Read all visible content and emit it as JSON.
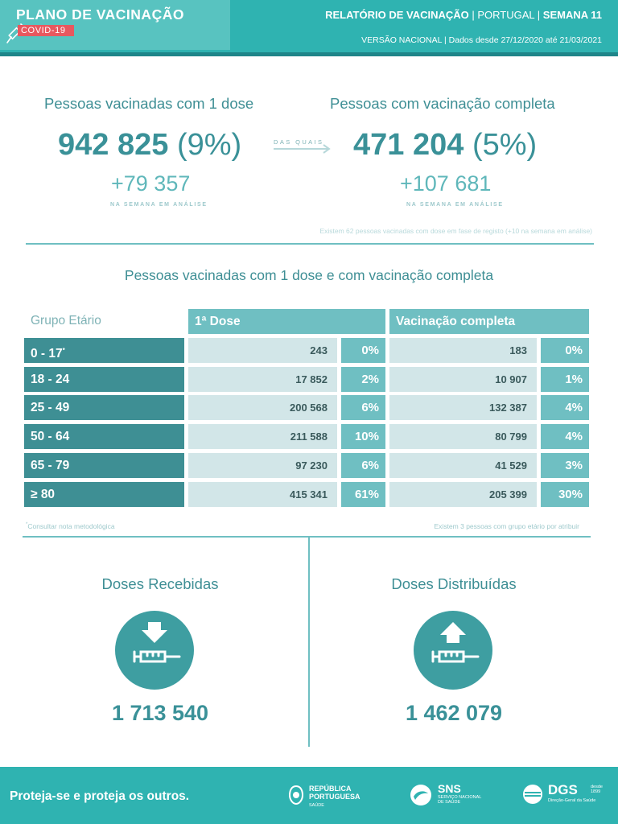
{
  "header": {
    "plan_title": "PLANO DE VACINAÇÃO",
    "plan_badge": "COVID-19",
    "report_title": "RELATÓRIO DE VACINAÇÃO",
    "country": "PORTUGAL",
    "week": "SEMANA 11",
    "version": "VERSÃO NACIONAL",
    "data_range": "Dados desde 27/12/2020 até 21/03/2021"
  },
  "kpis": {
    "one_dose": {
      "label": "Pessoas vacinadas com 1 dose",
      "value": "942 825",
      "percent": "(9%)",
      "delta": "+79 357",
      "delta_caption": "NA SEMANA EM ANÁLISE"
    },
    "connector": "DAS QUAIS",
    "complete": {
      "label": "Pessoas com vacinação completa",
      "value": "471 204",
      "percent": "(5%)",
      "delta": "+107 681",
      "delta_caption": "NA SEMANA EM ANÁLISE"
    },
    "registo_note": "Existem 62 pessoas vacinadas com dose em fase de registo (+10 na semana em análise)"
  },
  "table": {
    "title": "Pessoas vacinadas com 1 dose e com vacinação completa",
    "col_age": "Grupo Etário",
    "col_dose1": "1ª Dose",
    "col_complete": "Vacinação completa",
    "rows": [
      {
        "age": "0 - 17",
        "mark": "*",
        "d1": "243",
        "d1p": "0%",
        "vc": "183",
        "vcp": "0%"
      },
      {
        "age": "18 - 24",
        "mark": "",
        "d1": "17 852",
        "d1p": "2%",
        "vc": "10 907",
        "vcp": "1%"
      },
      {
        "age": "25 - 49",
        "mark": "",
        "d1": "200 568",
        "d1p": "6%",
        "vc": "132 387",
        "vcp": "4%"
      },
      {
        "age": "50 - 64",
        "mark": "",
        "d1": "211 588",
        "d1p": "10%",
        "vc": "80 799",
        "vcp": "4%"
      },
      {
        "age": "65 - 79",
        "mark": "",
        "d1": "97 230",
        "d1p": "6%",
        "vc": "41 529",
        "vcp": "3%"
      },
      {
        "age": "≥ 80",
        "mark": "",
        "d1": "415 341",
        "d1p": "61%",
        "vc": "205 399",
        "vcp": "30%"
      }
    ],
    "footnote_mark": "*",
    "footnote": "Consultar nota metodológica",
    "note_right": "Existem 3 pessoas com grupo etário por atribuir"
  },
  "doses": {
    "received": {
      "label": "Doses Recebidas",
      "value": "1 713 540",
      "icon": "arrow-down-syringe-icon"
    },
    "distributed": {
      "label": "Doses Distribuídas",
      "value": "1 462 079",
      "icon": "arrow-up-syringe-icon"
    }
  },
  "footer": {
    "slogan": "Proteja-se e proteja os outros.",
    "logo1_line1": "REPÚBLICA",
    "logo1_line2": "PORTUGUESA",
    "logo1_sub": "SAÚDE",
    "logo2_main": "SNS",
    "logo2_sub1": "SERVIÇO NACIONAL",
    "logo2_sub2": "DE SAÚDE",
    "logo3_main": "DGS",
    "logo3_since": "desde 1899",
    "logo3_sub": "Direção-Geral da Saúde"
  },
  "colors": {
    "teal": "#2fb3b1",
    "teal_dark": "#3e8f94",
    "teal_mid": "#6fbfc2",
    "teal_pale": "#d2e6e8",
    "text_teal": "#3f8f95",
    "badge_red": "#e8585f"
  }
}
